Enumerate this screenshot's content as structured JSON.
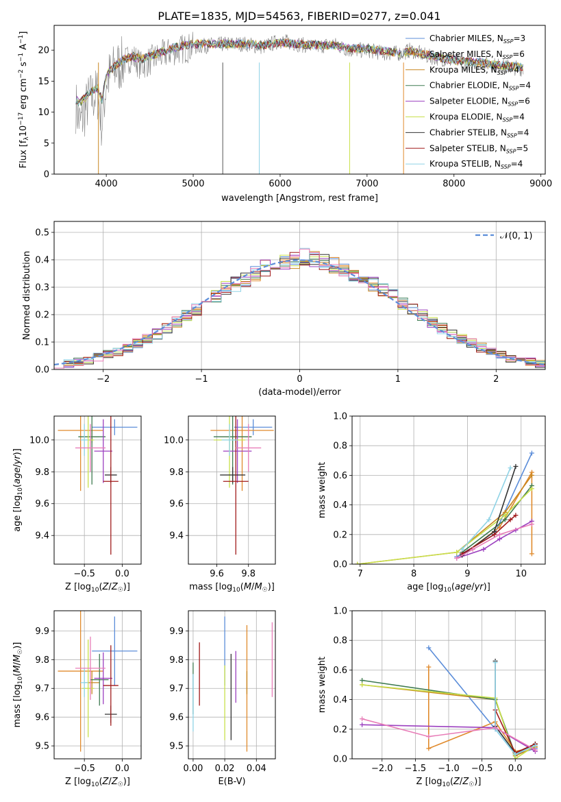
{
  "figure": {
    "title": "PLATE=1835, MJD=54563, FIBERID=0277, z=0.041"
  },
  "colors": {
    "Chabrier MILES": "#5B8DD9",
    "Salpeter MILES": "#E08A2C",
    "Kroupa MILES": "#C8861F",
    "Chabrier ELODIE": "#3E7A50",
    "Salpeter ELODIE": "#9B3FBF",
    "Kroupa ELODIE": "#C8E04A",
    "Chabrier STELIB": "#333333",
    "Salpeter STELIB": "#A01A1A",
    "Kroupa STELIB": "#8FD3E6",
    "data": "#808080",
    "normal": "#5B8DD9",
    "extra_pink": "#E87DB8"
  },
  "chart_data": [
    {
      "id": "spectrum",
      "type": "line",
      "title": "PLATE=1835, MJD=54563, FIBERID=0277, z=0.041",
      "xlabel": "wavelength [Angstrom, rest frame]",
      "ylabel": "Flux [f_λ10^-17 erg cm^-2 s^-1 A^-1]",
      "xlim": [
        3400,
        9050
      ],
      "ylim": [
        0,
        24
      ],
      "xticks": [
        4000,
        5000,
        6000,
        7000,
        8000,
        9000
      ],
      "yticks": [
        0,
        5,
        10,
        15,
        20
      ],
      "grid": false,
      "legend_position": "right",
      "data_series": {
        "name": "data",
        "x": [
          3650,
          3700,
          3800,
          3900,
          3950,
          4000,
          4100,
          4200,
          4300,
          4400,
          4600,
          4800,
          5000,
          5200,
          5400,
          5600,
          5800,
          6000,
          6200,
          6400,
          6600,
          6800,
          7000,
          7200,
          7400,
          7500,
          7700,
          7900,
          8100,
          8300,
          8500,
          8800
        ],
        "y": [
          11,
          8,
          12,
          13,
          8,
          15,
          17,
          18,
          19,
          17.5,
          19,
          20,
          20.5,
          20.8,
          21,
          21,
          20.5,
          21.5,
          21,
          20.5,
          21,
          20,
          20,
          19.5,
          19.5,
          20,
          19,
          18.5,
          18,
          18,
          17.5,
          17
        ]
      },
      "model_curve": {
        "x": [
          3650,
          3700,
          3800,
          3900,
          3950,
          4000,
          4100,
          4200,
          4300,
          4400,
          4600,
          4800,
          5000,
          5200,
          5400,
          5600,
          5800,
          6000,
          6200,
          6400,
          6600,
          6800,
          7000,
          7200,
          7400,
          7500,
          7700,
          7900,
          8100,
          8300,
          8500,
          8800
        ],
        "y": [
          12,
          11.5,
          13,
          14,
          12,
          16,
          17.5,
          18.5,
          19,
          18.5,
          19.5,
          20.5,
          21,
          21,
          21,
          21,
          20.8,
          21.2,
          21,
          20.8,
          20.8,
          20.3,
          20.2,
          19.8,
          19.5,
          19.8,
          19.2,
          18.6,
          18.2,
          18,
          17.6,
          17.2
        ]
      },
      "legend": [
        "Chabrier MILES, N_SSP=3",
        "Salpeter MILES, N_SSP=6",
        "Kroupa MILES, N_SSP=4",
        "Chabrier ELODIE, N_SSP=4",
        "Salpeter ELODIE, N_SSP=6",
        "Kroupa ELODIE, N_SSP=4",
        "Chabrier STELIB, N_SSP=4",
        "Salpeter STELIB, N_SSP=5",
        "Kroupa STELIB, N_SSP=4"
      ]
    },
    {
      "id": "residuals",
      "type": "line",
      "xlabel": "(data-model)/error",
      "ylabel": "Normed distribution",
      "xlim": [
        -2.5,
        2.5
      ],
      "ylim": [
        0,
        0.54
      ],
      "xticks": [
        -2,
        -1,
        0,
        1,
        2
      ],
      "yticks": [
        0.0,
        0.1,
        0.2,
        0.3,
        0.4,
        0.5
      ],
      "grid": true,
      "legend_position": "upper right",
      "legend": [
        "𝒩(0, 1)"
      ],
      "bins": [
        -2.5,
        -2.4,
        -2.3,
        -2.2,
        -2.1,
        -2.0,
        -1.9,
        -1.8,
        -1.7,
        -1.6,
        -1.5,
        -1.4,
        -1.3,
        -1.2,
        -1.1,
        -1.0,
        -0.9,
        -0.8,
        -0.7,
        -0.6,
        -0.5,
        -0.4,
        -0.3,
        -0.2,
        -0.1,
        0.0,
        0.1,
        0.2,
        0.3,
        0.4,
        0.5,
        0.6,
        0.7,
        0.8,
        0.9,
        1.0,
        1.1,
        1.2,
        1.3,
        1.4,
        1.5,
        1.6,
        1.7,
        1.8,
        1.9,
        2.0,
        2.1,
        2.2,
        2.3,
        2.4,
        2.5
      ],
      "histogram_base": [
        0.018,
        0.022,
        0.028,
        0.035,
        0.045,
        0.055,
        0.065,
        0.078,
        0.095,
        0.11,
        0.13,
        0.15,
        0.175,
        0.2,
        0.22,
        0.25,
        0.27,
        0.3,
        0.31,
        0.33,
        0.35,
        0.37,
        0.38,
        0.39,
        0.4,
        0.41,
        0.4,
        0.39,
        0.38,
        0.37,
        0.35,
        0.33,
        0.31,
        0.29,
        0.27,
        0.24,
        0.22,
        0.2,
        0.17,
        0.15,
        0.13,
        0.11,
        0.095,
        0.08,
        0.065,
        0.052,
        0.042,
        0.034,
        0.027,
        0.02
      ],
      "normal_curve": {
        "x": [
          -2.5,
          -2.0,
          -1.5,
          -1.0,
          -0.5,
          0.0,
          0.5,
          1.0,
          1.5,
          2.0,
          2.5
        ],
        "y": [
          0.0175,
          0.054,
          0.1295,
          0.242,
          0.352,
          0.399,
          0.352,
          0.242,
          0.1295,
          0.054,
          0.0175
        ]
      }
    },
    {
      "id": "age_vs_Z",
      "type": "scatter",
      "xlabel": "Z [log10(Z/Z☉)]",
      "ylabel": "age [log10(age/yr)]",
      "xlim": [
        -0.9,
        0.25
      ],
      "ylim": [
        9.22,
        10.15
      ],
      "xticks": [
        -0.5,
        0.0
      ],
      "yticks": [
        9.4,
        9.6,
        9.8,
        10.0
      ],
      "grid": true,
      "points": [
        {
          "model": "Chabrier MILES",
          "x": -0.1,
          "y": 10.08,
          "xerr": 0.3,
          "yerr": 0.05
        },
        {
          "model": "Salpeter MILES",
          "x": -0.55,
          "y": 10.06,
          "xerr": 0.3,
          "yerr": 0.38
        },
        {
          "model": "Kroupa MILES",
          "x": -0.4,
          "y": 10.02,
          "xerr": 0.1,
          "yerr": 0.04
        },
        {
          "model": "Chabrier ELODIE",
          "x": -0.4,
          "y": 10.02,
          "xerr": 0.18,
          "yerr": 0.3
        },
        {
          "model": "Salpeter ELODIE",
          "x": -0.25,
          "y": 9.93,
          "xerr": 0.12,
          "yerr": 0.2
        },
        {
          "model": "Kroupa ELODIE",
          "x": -0.45,
          "y": 10.0,
          "xerr": 0.08,
          "yerr": 0.3
        },
        {
          "model": "Chabrier STELIB",
          "x": -0.15,
          "y": 9.78,
          "xerr": 0.08,
          "yerr": 0.05
        },
        {
          "model": "Salpeter STELIB",
          "x": -0.15,
          "y": 9.74,
          "xerr": 0.1,
          "yerr": 0.46
        },
        {
          "model": "Kroupa STELIB",
          "x": -0.5,
          "y": 10.0,
          "xerr": 0.05,
          "yerr": 0.1
        },
        {
          "model": "extra_pink",
          "x": -0.42,
          "y": 9.95,
          "xerr": 0.2,
          "yerr": 0.15
        }
      ]
    },
    {
      "id": "age_vs_mass",
      "type": "scatter",
      "xlabel": "mass [log10(M/M☉)]",
      "ylabel": "",
      "xlim": [
        9.42,
        9.97
      ],
      "ylim": [
        9.22,
        10.15
      ],
      "xticks": [
        9.6,
        9.8
      ],
      "yticks": [
        9.4,
        9.6,
        9.8,
        10.0
      ],
      "grid": true,
      "points": [
        {
          "model": "Chabrier MILES",
          "x": 9.83,
          "y": 10.08,
          "xerr": 0.12,
          "yerr": 0.05
        },
        {
          "model": "Salpeter MILES",
          "x": 9.76,
          "y": 10.06,
          "xerr": 0.2,
          "yerr": 0.38
        },
        {
          "model": "Kroupa MILES",
          "x": 9.72,
          "y": 10.02,
          "xerr": 0.1,
          "yerr": 0.04
        },
        {
          "model": "Chabrier ELODIE",
          "x": 9.7,
          "y": 10.02,
          "xerr": 0.12,
          "yerr": 0.3
        },
        {
          "model": "Salpeter ELODIE",
          "x": 9.73,
          "y": 9.93,
          "xerr": 0.09,
          "yerr": 0.2
        },
        {
          "model": "Kroupa ELODIE",
          "x": 9.68,
          "y": 10.0,
          "xerr": 0.1,
          "yerr": 0.3
        },
        {
          "model": "Chabrier STELIB",
          "x": 9.7,
          "y": 9.78,
          "xerr": 0.08,
          "yerr": 0.05
        },
        {
          "model": "Salpeter STELIB",
          "x": 9.72,
          "y": 9.74,
          "xerr": 0.08,
          "yerr": 0.46
        },
        {
          "model": "Kroupa STELIB",
          "x": 9.68,
          "y": 10.0,
          "xerr": 0.05,
          "yerr": 0.1
        },
        {
          "model": "extra_pink",
          "x": 9.8,
          "y": 9.95,
          "xerr": 0.08,
          "yerr": 0.15
        }
      ]
    },
    {
      "id": "massweight_vs_age",
      "type": "line",
      "xlabel": "age [log10(age/yr)]",
      "ylabel": "mass weight",
      "xlim": [
        6.85,
        10.45
      ],
      "ylim": [
        0,
        1.0
      ],
      "xticks": [
        7,
        8,
        9,
        10
      ],
      "yticks": [
        0.0,
        0.2,
        0.4,
        0.6,
        0.8,
        1.0
      ],
      "grid": true,
      "series": [
        {
          "model": "Chabrier MILES",
          "x": [
            8.8,
            9.5,
            10.2
          ],
          "y": [
            0.05,
            0.2,
            0.75
          ]
        },
        {
          "model": "Salpeter MILES",
          "x": [
            8.9,
            9.6,
            10.2,
            10.2
          ],
          "y": [
            0.06,
            0.25,
            0.62,
            0.07
          ]
        },
        {
          "model": "Kroupa MILES",
          "x": [
            6.95,
            8.8,
            9.7,
            10.2
          ],
          "y": [
            0.0,
            0.08,
            0.35,
            0.6
          ]
        },
        {
          "model": "Chabrier ELODIE",
          "x": [
            8.9,
            9.7,
            10.2
          ],
          "y": [
            0.08,
            0.3,
            0.53
          ]
        },
        {
          "model": "Salpeter ELODIE",
          "x": [
            8.8,
            9.3,
            9.6,
            9.9,
            10.2
          ],
          "y": [
            0.04,
            0.1,
            0.17,
            0.23,
            0.29
          ]
        },
        {
          "model": "Kroupa ELODIE",
          "x": [
            6.95,
            8.8,
            9.7,
            10.2
          ],
          "y": [
            0.0,
            0.08,
            0.33,
            0.51
          ]
        },
        {
          "model": "Chabrier STELIB",
          "x": [
            8.9,
            9.5,
            9.9
          ],
          "y": [
            0.06,
            0.22,
            0.66
          ]
        },
        {
          "model": "Salpeter STELIB",
          "x": [
            8.9,
            9.5,
            9.8,
            9.9
          ],
          "y": [
            0.07,
            0.2,
            0.3,
            0.33
          ]
        },
        {
          "model": "Kroupa STELIB",
          "x": [
            8.9,
            9.4,
            9.8
          ],
          "y": [
            0.1,
            0.3,
            0.65
          ]
        },
        {
          "model": "extra_pink",
          "x": [
            8.8,
            9.1,
            9.6,
            10.2
          ],
          "y": [
            0.04,
            0.1,
            0.2,
            0.27
          ]
        }
      ]
    },
    {
      "id": "mass_vs_Z",
      "type": "scatter",
      "xlabel": "Z [log10(Z/Z☉)]",
      "ylabel": "mass [log10(M/M☉)]",
      "xlim": [
        -0.9,
        0.25
      ],
      "ylim": [
        9.455,
        9.97
      ],
      "xticks": [
        -0.5,
        0.0
      ],
      "yticks": [
        9.5,
        9.6,
        9.7,
        9.8,
        9.9
      ],
      "grid": true,
      "points": [
        {
          "model": "Chabrier MILES",
          "x": -0.1,
          "y": 9.83,
          "xerr": 0.3,
          "yerr": 0.12
        },
        {
          "model": "Salpeter MILES",
          "x": -0.55,
          "y": 9.76,
          "xerr": 0.3,
          "yerr": 0.28
        },
        {
          "model": "Kroupa MILES",
          "x": -0.4,
          "y": 9.72,
          "xerr": 0.1,
          "yerr": 0.04
        },
        {
          "model": "Chabrier ELODIE",
          "x": -0.3,
          "y": 9.73,
          "xerr": 0.12,
          "yerr": 0.09
        },
        {
          "model": "Salpeter ELODIE",
          "x": -0.25,
          "y": 9.735,
          "xerr": 0.12,
          "yerr": 0.09
        },
        {
          "model": "Kroupa ELODIE",
          "x": -0.45,
          "y": 9.7,
          "xerr": 0.08,
          "yerr": 0.17
        },
        {
          "model": "Chabrier STELIB",
          "x": -0.15,
          "y": 9.61,
          "xerr": 0.08,
          "yerr": 0.03
        },
        {
          "model": "Salpeter STELIB",
          "x": -0.15,
          "y": 9.71,
          "xerr": 0.1,
          "yerr": 0.14
        },
        {
          "model": "Kroupa STELIB",
          "x": -0.5,
          "y": 9.72,
          "xerr": 0.05,
          "yerr": 0.05
        },
        {
          "model": "extra_pink",
          "x": -0.42,
          "y": 9.77,
          "xerr": 0.2,
          "yerr": 0.11
        }
      ]
    },
    {
      "id": "mass_vs_EBV",
      "type": "scatter",
      "xlabel": "E(B-V)",
      "ylabel": "",
      "xlim": [
        -0.003,
        0.052
      ],
      "ylim": [
        9.455,
        9.97
      ],
      "xticks": [
        0.0,
        0.02,
        0.04
      ],
      "yticks": [
        9.5,
        9.6,
        9.7,
        9.8,
        9.9
      ],
      "grid": true,
      "points": [
        {
          "model": "Chabrier MILES",
          "x": 0.02,
          "y": 9.83,
          "xerr": 0,
          "yerr": 0.12
        },
        {
          "model": "Salpeter MILES",
          "x": 0.034,
          "y": 9.7,
          "xerr": 0,
          "yerr": 0.22
        },
        {
          "model": "Kroupa MILES",
          "x": 0.034,
          "y": 9.72,
          "xerr": 0,
          "yerr": 0.04
        },
        {
          "model": "Chabrier ELODIE",
          "x": 0.0,
          "y": 9.7,
          "xerr": 0,
          "yerr": 0.09
        },
        {
          "model": "Salpeter ELODIE",
          "x": 0.027,
          "y": 9.74,
          "xerr": 0,
          "yerr": 0.09
        },
        {
          "model": "Kroupa ELODIE",
          "x": 0.02,
          "y": 9.65,
          "xerr": 0,
          "yerr": 0.13
        },
        {
          "model": "Chabrier STELIB",
          "x": 0.024,
          "y": 9.67,
          "xerr": 0,
          "yerr": 0.15
        },
        {
          "model": "Salpeter STELIB",
          "x": 0.004,
          "y": 9.75,
          "xerr": 0,
          "yerr": 0.11
        },
        {
          "model": "Kroupa STELIB",
          "x": 0.0,
          "y": 9.65,
          "xerr": 0,
          "yerr": 0.1
        },
        {
          "model": "extra_pink",
          "x": 0.05,
          "y": 9.8,
          "xerr": 0,
          "yerr": 0.13
        }
      ]
    },
    {
      "id": "massweight_vs_Z",
      "type": "line",
      "xlabel": "Z [log10(Z/Z☉)]",
      "ylabel": "mass weight",
      "xlim": [
        -2.45,
        0.45
      ],
      "ylim": [
        0,
        1.0
      ],
      "xticks": [
        -2.0,
        -1.5,
        -1.0,
        -0.5,
        0.0
      ],
      "yticks": [
        0.0,
        0.2,
        0.4,
        0.6,
        0.8,
        1.0
      ],
      "grid": true,
      "series": [
        {
          "model": "Chabrier MILES",
          "x": [
            -1.3,
            -0.3,
            0.0,
            0.3
          ],
          "y": [
            0.75,
            0.2,
            0.03,
            0.07
          ]
        },
        {
          "model": "Salpeter MILES",
          "x": [
            -1.3,
            -1.3,
            -0.3,
            0.0,
            0.3
          ],
          "y": [
            0.62,
            0.07,
            0.25,
            0.05,
            0.08
          ]
        },
        {
          "model": "Kroupa MILES",
          "x": [
            -2.3,
            -0.3,
            0.0,
            0.3
          ],
          "y": [
            0.5,
            0.4,
            0.02,
            0.08
          ]
        },
        {
          "model": "Chabrier ELODIE",
          "x": [
            -2.3,
            -0.3,
            0.0,
            0.3
          ],
          "y": [
            0.53,
            0.4,
            0.03,
            0.1
          ]
        },
        {
          "model": "Salpeter ELODIE",
          "x": [
            -2.3,
            -0.3,
            0.3
          ],
          "y": [
            0.23,
            0.21,
            0.05
          ]
        },
        {
          "model": "Kroupa ELODIE",
          "x": [
            -2.3,
            -0.3,
            0.0,
            0.3
          ],
          "y": [
            0.5,
            0.41,
            0.0,
            0.09
          ]
        },
        {
          "model": "Chabrier STELIB",
          "x": [
            -0.3,
            -0.3,
            0.0,
            0.3
          ],
          "y": [
            0.66,
            0.22,
            0.04,
            0.1
          ]
        },
        {
          "model": "Salpeter STELIB",
          "x": [
            -0.3,
            0.0,
            0.3
          ],
          "y": [
            0.33,
            0.04,
            0.1
          ]
        },
        {
          "model": "Kroupa STELIB",
          "x": [
            -0.3,
            -0.3,
            0.0,
            0.3
          ],
          "y": [
            0.65,
            0.2,
            0.03,
            0.09
          ]
        },
        {
          "model": "extra_pink",
          "x": [
            -2.3,
            -1.3,
            -0.3,
            0.3
          ],
          "y": [
            0.27,
            0.15,
            0.21,
            0.06
          ]
        }
      ]
    }
  ]
}
